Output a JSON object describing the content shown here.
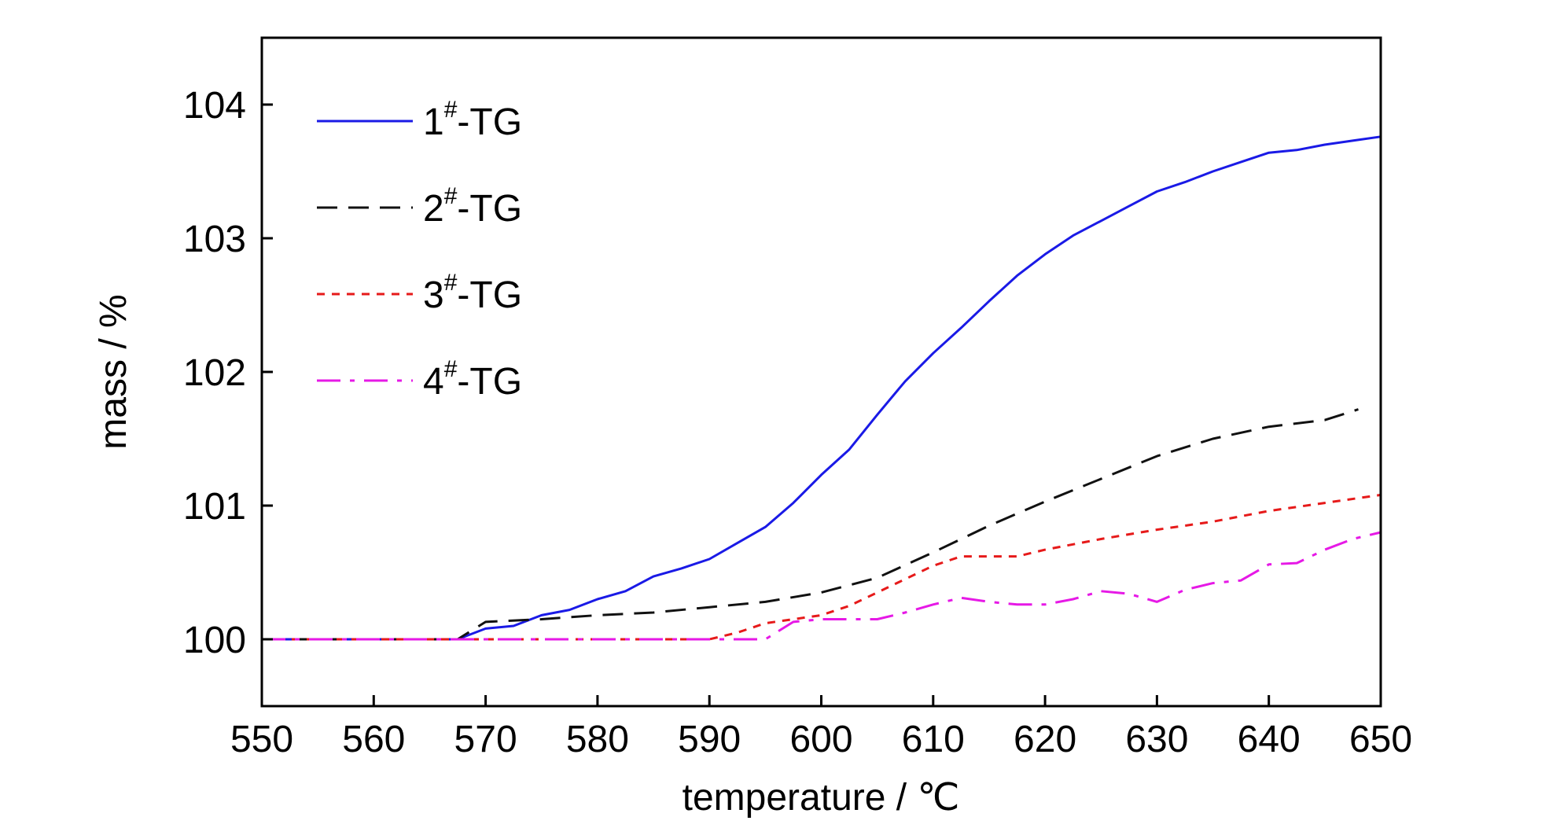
{
  "chart_data": {
    "type": "line",
    "xlabel": "temperature / ℃",
    "ylabel": "mass / %",
    "xlim": [
      550,
      650
    ],
    "ylim": [
      99.5,
      104.5
    ],
    "xticks": [
      550,
      560,
      570,
      580,
      590,
      600,
      610,
      620,
      630,
      640,
      650
    ],
    "yticks": [
      100,
      101,
      102,
      103,
      104
    ],
    "grid": false,
    "legend_position": "top-left",
    "series": [
      {
        "name": "1#-TG",
        "legend_base": "1",
        "legend_sup": "#",
        "legend_suffix": "-TG",
        "color": "#1a1ae6",
        "style": "solid",
        "x": [
          550,
          567.5,
          570,
          572.5,
          575,
          577.5,
          580,
          582.5,
          585,
          587.5,
          590,
          592.5,
          595,
          597.5,
          600,
          602.5,
          605,
          607.5,
          610,
          612.5,
          615,
          617.5,
          620,
          622.5,
          625,
          627.5,
          630,
          632.5,
          635,
          637.5,
          640,
          642.5,
          645,
          647.5,
          650
        ],
        "y": [
          100,
          100,
          100.08,
          100.1,
          100.18,
          100.22,
          100.3,
          100.36,
          100.47,
          100.53,
          100.6,
          100.72,
          100.84,
          101.02,
          101.23,
          101.42,
          101.68,
          101.93,
          102.14,
          102.33,
          102.53,
          102.72,
          102.88,
          103.02,
          103.13,
          103.24,
          103.35,
          103.42,
          103.5,
          103.57,
          103.64,
          103.66,
          103.7,
          103.73,
          103.76
        ]
      },
      {
        "name": "2#-TG",
        "legend_base": "2",
        "legend_sup": "#",
        "legend_suffix": "-TG",
        "color": "#111111",
        "style": "dash",
        "x": [
          550,
          567.5,
          570,
          575,
          580,
          585,
          590,
          595,
          600,
          605,
          610,
          615,
          620,
          625,
          630,
          635,
          640,
          645,
          648
        ],
        "y": [
          100,
          100,
          100.13,
          100.15,
          100.18,
          100.2,
          100.24,
          100.28,
          100.35,
          100.46,
          100.65,
          100.85,
          101.03,
          101.2,
          101.37,
          101.5,
          101.59,
          101.64,
          101.72
        ]
      },
      {
        "name": "3#-TG",
        "legend_base": "3",
        "legend_sup": "#",
        "legend_suffix": "-TG",
        "color": "#e61a1a",
        "style": "dot",
        "x": [
          550,
          590,
          592.5,
          595,
          597.5,
          600,
          602.5,
          605,
          607.5,
          610,
          612.5,
          615,
          617.5,
          620,
          625,
          630,
          635,
          640,
          645,
          650
        ],
        "y": [
          100,
          100,
          100.05,
          100.12,
          100.15,
          100.18,
          100.25,
          100.35,
          100.45,
          100.55,
          100.62,
          100.62,
          100.62,
          100.67,
          100.75,
          100.82,
          100.88,
          100.96,
          101.02,
          101.08
        ]
      },
      {
        "name": "4#-TG",
        "legend_base": "4",
        "legend_sup": "#",
        "legend_suffix": "-TG",
        "color": "#e619e6",
        "style": "dashdot",
        "x": [
          550,
          595,
          597.5,
          600,
          602.5,
          605,
          607.5,
          610,
          612.5,
          615,
          617.5,
          620,
          622.5,
          625,
          627.5,
          630,
          632.5,
          635,
          637.5,
          640,
          642.5,
          645,
          647.5,
          650
        ],
        "y": [
          100,
          100,
          100.13,
          100.15,
          100.15,
          100.15,
          100.2,
          100.26,
          100.31,
          100.28,
          100.26,
          100.26,
          100.3,
          100.36,
          100.34,
          100.28,
          100.37,
          100.42,
          100.44,
          100.56,
          100.57,
          100.67,
          100.75,
          100.8
        ]
      }
    ]
  }
}
